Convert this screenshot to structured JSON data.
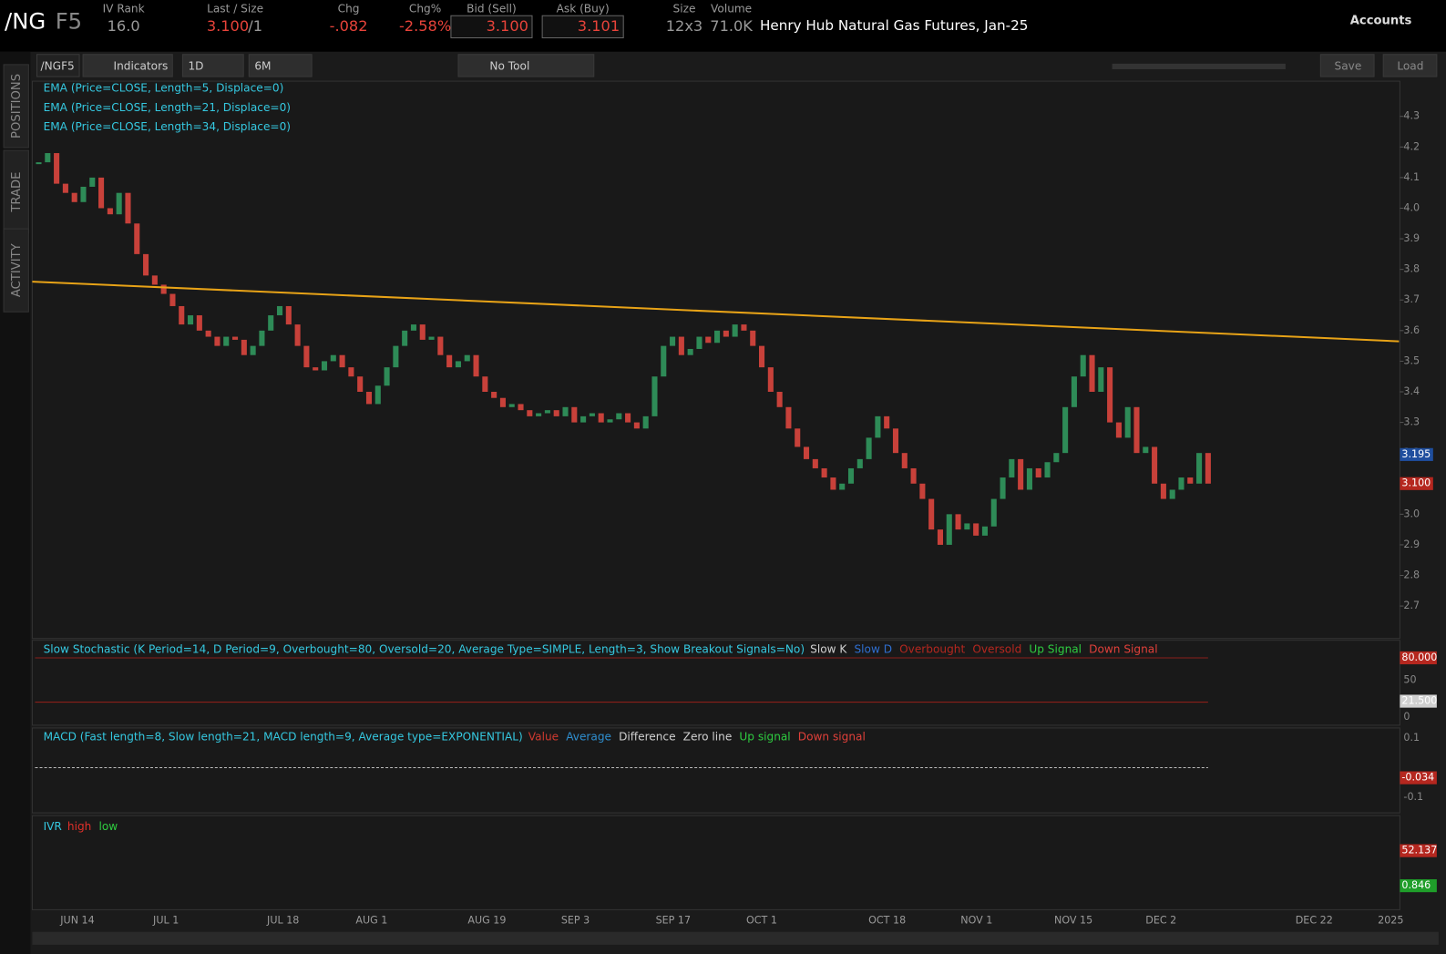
{
  "header": {
    "symbol": "/NG",
    "symbol_suffix": "F5",
    "description": "Henry Hub Natural Gas Futures, Jan-25",
    "accounts": "Accounts",
    "fields": [
      {
        "label": "IV Rank",
        "value": "16.0"
      },
      {
        "label": "Last / Size",
        "value": "3.100",
        "extra": "/1"
      },
      {
        "label": "Chg",
        "value": "-.082"
      },
      {
        "label": "Chg%",
        "value": "-2.58%"
      },
      {
        "label": "Bid (Sell)",
        "value": "3.100"
      },
      {
        "label": "Ask (Buy)",
        "value": "3.101"
      },
      {
        "label": "Size",
        "value": "12x3"
      },
      {
        "label": "Volume",
        "value": "71.0K"
      }
    ]
  },
  "toolbar": {
    "symbol": "/NGF5",
    "indicators": "Indicators",
    "aggregation": "1D",
    "range": "6M",
    "tool": "No Tool",
    "save": "Save",
    "load": "Load"
  },
  "side_tabs": [
    "POSITIONS",
    "TRADE",
    "ACTIVITY"
  ],
  "chart_data": {
    "type": "candlestick",
    "studies": [
      "EMA (Price=CLOSE, Length=5, Displace=0)",
      "EMA (Price=CLOSE, Length=21, Displace=0)",
      "EMA (Price=CLOSE, Length=34, Displace=0)"
    ],
    "values": [
      4.15,
      4.18,
      4.08,
      4.05,
      4.02,
      4.07,
      4.1,
      4.0,
      3.98,
      4.05,
      3.95,
      3.85,
      3.78,
      3.75,
      3.72,
      3.68,
      3.62,
      3.65,
      3.6,
      3.58,
      3.55,
      3.58,
      3.57,
      3.52,
      3.55,
      3.6,
      3.65,
      3.68,
      3.62,
      3.55,
      3.48,
      3.47,
      3.5,
      3.52,
      3.48,
      3.45,
      3.4,
      3.36,
      3.42,
      3.48,
      3.55,
      3.6,
      3.62,
      3.57,
      3.58,
      3.52,
      3.48,
      3.5,
      3.52,
      3.45,
      3.4,
      3.38,
      3.35,
      3.36,
      3.34,
      3.32,
      3.33,
      3.34,
      3.32,
      3.35,
      3.3,
      3.32,
      3.33,
      3.3,
      3.31,
      3.33,
      3.3,
      3.28,
      3.32,
      3.45,
      3.55,
      3.58,
      3.52,
      3.54,
      3.58,
      3.56,
      3.6,
      3.58,
      3.62,
      3.6,
      3.55,
      3.48,
      3.4,
      3.35,
      3.28,
      3.22,
      3.18,
      3.15,
      3.12,
      3.08,
      3.1,
      3.15,
      3.18,
      3.25,
      3.32,
      3.28,
      3.2,
      3.15,
      3.1,
      3.05,
      2.95,
      2.9,
      3.0,
      2.95,
      2.97,
      2.93,
      2.96,
      3.05,
      3.12,
      3.18,
      3.08,
      3.15,
      3.12,
      3.17,
      3.2,
      3.35,
      3.45,
      3.52,
      3.4,
      3.48,
      3.3,
      3.25,
      3.35,
      3.2,
      3.22,
      3.1,
      3.05,
      3.08,
      3.12,
      3.1,
      3.2,
      3.1
    ],
    "up_color": "#2e8b57",
    "down_color": "#c8413a",
    "ylim": [
      2.594,
      4.415
    ],
    "yticks": [
      {
        "value": 2.7,
        "label": "2.7"
      },
      2.8,
      2.9,
      {
        "value": 3,
        "label": "3.0"
      },
      3.1,
      3.2,
      3.3,
      3.4,
      3.5,
      3.6,
      3.7,
      3.8,
      3.9,
      {
        "value": 4,
        "label": "4.0"
      },
      4.1,
      4.2,
      4.3
    ],
    "trendline": {
      "color": "#e8a317",
      "values": [
        3.76,
        3.565
      ]
    },
    "price_tags": [
      {
        "value": 3.195,
        "label": "3.195",
        "color": "#1f4e9e"
      },
      {
        "value": 3.1,
        "label": "3.100",
        "color": "#b5271f"
      }
    ],
    "xtick_labels": [
      "JUN 14",
      "JUL 1",
      "JUL 18",
      "AUG 1",
      "AUG 19",
      "SEP 3",
      "SEP 17",
      "OCT 1",
      "OCT 18",
      "NOV 1",
      "NOV 15",
      "DEC 2",
      "DEC 22",
      "2025"
    ]
  },
  "panels": [
    {
      "title": "Slow Stochastic (K Period=14, D Period=9, Overbought=80, Oversold=20, Average Type=SIMPLE, Length=3, Show Breakout Signals=No)",
      "legend": [
        {
          "name": "Slow K",
          "color": "#d0d0d0"
        },
        {
          "name": "Slow D",
          "color": "#2f6fd0"
        },
        {
          "name": "Overbought",
          "color": "#b5271f"
        },
        {
          "name": "Oversold",
          "color": "#b5271f"
        },
        {
          "name": "Up Signal",
          "color": "#2ecc40"
        },
        {
          "name": "Down Signal",
          "color": "#e0403a"
        }
      ],
      "scale_labels": [
        "50",
        "0"
      ],
      "tags": [
        {
          "label": "80.000",
          "color": "#b5271f"
        },
        {
          "label": "21.500",
          "color": "#d0d0d0"
        }
      ]
    },
    {
      "title": "MACD (Fast length=8, Slow length=21, MACD length=9, Average type=EXPONENTIAL)",
      "legend": [
        {
          "name": "Value",
          "color": "#d03a30"
        },
        {
          "name": "Average",
          "color": "#2f8fd0"
        },
        {
          "name": "Difference",
          "color": "#d0d0d0"
        },
        {
          "name": "Zero line",
          "color": "#d0d0d0"
        },
        {
          "name": "Up signal",
          "color": "#2ecc40"
        },
        {
          "name": "Down signal",
          "color": "#e0403a"
        }
      ],
      "scale_labels": [
        "0.1",
        "-0.1"
      ],
      "tags": [
        {
          "label": "-0.034",
          "color": "#b5271f"
        }
      ]
    },
    {
      "title": "IVR",
      "legend": [
        {
          "name": "high",
          "color": "#e0302a"
        },
        {
          "name": "low",
          "color": "#2ecc40"
        }
      ],
      "scale_labels": [],
      "tags": [
        {
          "label": "52.137",
          "color": "#b5271f"
        },
        {
          "label": "0.846",
          "color": "#1f9e2a"
        }
      ]
    }
  ]
}
